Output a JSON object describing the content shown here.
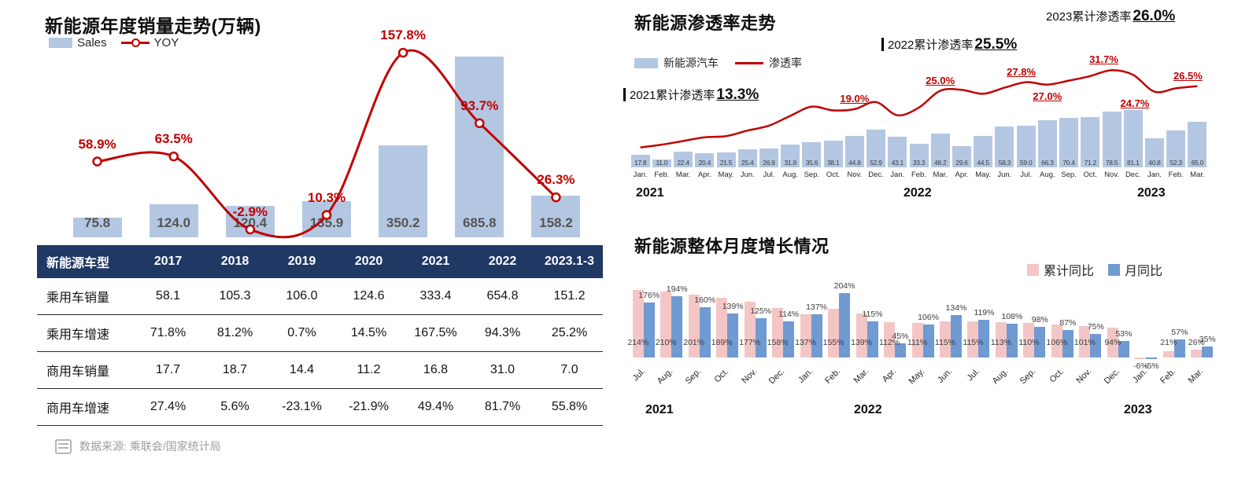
{
  "colors": {
    "bar_blue": "#b4c7e2",
    "line_red": "#c00000",
    "table_header_bg": "#1f3864",
    "pink": "#f3c6c5",
    "blue": "#6f9ad2"
  },
  "left": {
    "title": "新能源年度销量走势(万辆)",
    "legend_sales": "Sales",
    "legend_yoy": "YOY",
    "chart_data": {
      "type": "bar",
      "categories": [
        "2017",
        "2018",
        "2019",
        "2020",
        "2021",
        "2022",
        "2023.1-3"
      ],
      "series": [
        {
          "name": "Sales",
          "type": "bar",
          "values": [
            75.8,
            124.0,
            120.4,
            135.9,
            350.2,
            685.8,
            158.2
          ]
        },
        {
          "name": "YOY",
          "type": "line",
          "unit": "%",
          "values": [
            58.9,
            63.5,
            -2.9,
            10.3,
            157.8,
            93.7,
            26.3
          ]
        }
      ],
      "bar_labels": [
        "75.8",
        "124.0",
        "120.4",
        "135.9",
        "350.2",
        "685.8",
        "158.2"
      ],
      "line_labels": [
        "58.9%",
        "63.5%",
        "-2.9%",
        "10.3%",
        "157.8%",
        "93.7%",
        "26.3%"
      ],
      "legend_position": "top-left",
      "grid": false
    },
    "table": {
      "header": [
        "新能源车型",
        "2017",
        "2018",
        "2019",
        "2020",
        "2021",
        "2022",
        "2023.1-3"
      ],
      "rows": [
        [
          "乘用车销量",
          "58.1",
          "105.3",
          "106.0",
          "124.6",
          "333.4",
          "654.8",
          "151.2"
        ],
        [
          "乘用车增速",
          "71.8%",
          "81.2%",
          "0.7%",
          "14.5%",
          "167.5%",
          "94.3%",
          "25.2%"
        ],
        [
          "商用车销量",
          "17.7",
          "18.7",
          "14.4",
          "11.2",
          "16.8",
          "31.0",
          "7.0"
        ],
        [
          "商用车增速",
          "27.4%",
          "5.6%",
          "-23.1%",
          "-21.9%",
          "49.4%",
          "81.7%",
          "55.8%"
        ]
      ]
    },
    "source": "数据来源: 乘联会/国家统计局"
  },
  "penetration": {
    "title": "新能源渗透率走势",
    "legend_bar": "新能源汽车",
    "legend_line": "渗透率",
    "ann_2021": {
      "prefix": "2021累计渗透率",
      "value": "13.3%"
    },
    "ann_2022": {
      "prefix": "2022累计渗透率",
      "value": "25.5%"
    },
    "ann_2023": {
      "prefix": "2023累计渗透率",
      "value": "26.0%"
    },
    "chart_data": {
      "type": "bar+line",
      "x": [
        "Jan.",
        "Feb.",
        "Mar.",
        "Apr.",
        "May.",
        "Jun.",
        "Jul.",
        "Aug.",
        "Sep.",
        "Oct.",
        "Nov.",
        "Dec.",
        "Jan.",
        "Feb.",
        "Mar.",
        "Apr.",
        "May.",
        "Jun.",
        "Jul.",
        "Aug.",
        "Sep.",
        "Oct.",
        "Nov.",
        "Dec.",
        "Jan.",
        "Feb.",
        "Mar."
      ],
      "years": [
        {
          "label": "2021",
          "x": 8
        },
        {
          "label": "2022",
          "x": 348
        },
        {
          "label": "2023",
          "x": 645
        }
      ],
      "bars": [
        17.8,
        11.0,
        22.4,
        20.4,
        21.5,
        25.4,
        26.9,
        31.9,
        35.6,
        38.1,
        44.8,
        52.9,
        43.1,
        33.3,
        48.2,
        29.6,
        44.5,
        58.3,
        59.0,
        66.3,
        70.4,
        71.2,
        78.5,
        81.1,
        40.8,
        52.3,
        65.0
      ],
      "line": [
        6.5,
        7.4,
        8.6,
        9.8,
        10.2,
        12.0,
        13.6,
        16.8,
        19.8,
        18.6,
        19.0,
        21.3,
        17.0,
        19.5,
        25.0,
        25.3,
        24.0,
        26.0,
        27.8,
        27.0,
        28.3,
        29.8,
        31.7,
        30.2,
        24.7,
        25.8,
        26.5
      ],
      "line_point_labels": [
        {
          "index": 10,
          "text": "19.0%",
          "pos": "above",
          "dx": 0
        },
        {
          "index": 14,
          "text": "25.0%",
          "pos": "above",
          "dx": 0
        },
        {
          "index": 18,
          "text": "27.8%",
          "pos": "above",
          "dx": -6
        },
        {
          "index": 19,
          "text": "27.0%",
          "pos": "below",
          "dx": 0
        },
        {
          "index": 22,
          "text": "31.7%",
          "pos": "above",
          "dx": -10
        },
        {
          "index": 24,
          "text": "24.7%",
          "pos": "below",
          "dx": -25
        },
        {
          "index": 26,
          "text": "26.5%",
          "pos": "above",
          "dx": -12
        }
      ],
      "grid": false
    }
  },
  "monthly": {
    "title": "新能源整体月度增长情况",
    "legend_cum": "累计同比",
    "legend_mom": "月同比",
    "chart_data": {
      "type": "bar",
      "x": [
        "Jul.",
        "Aug.",
        "Sep.",
        "Oct.",
        "Nov.",
        "Dec.",
        "Jan.",
        "Feb.",
        "Mar.",
        "Apr.",
        "May.",
        "Jun.",
        "Jul.",
        "Aug.",
        "Sep.",
        "Oct.",
        "Nov.",
        "Dec.",
        "Jan.",
        "Feb.",
        "Mar."
      ],
      "years": [
        {
          "label": "2021",
          "x": 20
        },
        {
          "label": "2022",
          "x": 285
        },
        {
          "label": "2023",
          "x": 628
        }
      ],
      "series": [
        {
          "name": "累计同比",
          "values": [
            214,
            210,
            201,
            189,
            177,
            158,
            137,
            155,
            139,
            112,
            111,
            115,
            115,
            113,
            110,
            106,
            101,
            94,
            -6,
            21,
            26
          ]
        },
        {
          "name": "月同比",
          "values": [
            176,
            194,
            160,
            139,
            125,
            114,
            137,
            204,
            115,
            45,
            106,
            134,
            119,
            108,
            98,
            87,
            75,
            53,
            -5,
            57,
            35
          ]
        }
      ],
      "unit": "%",
      "legend_position": "top-right",
      "grid": false
    }
  }
}
